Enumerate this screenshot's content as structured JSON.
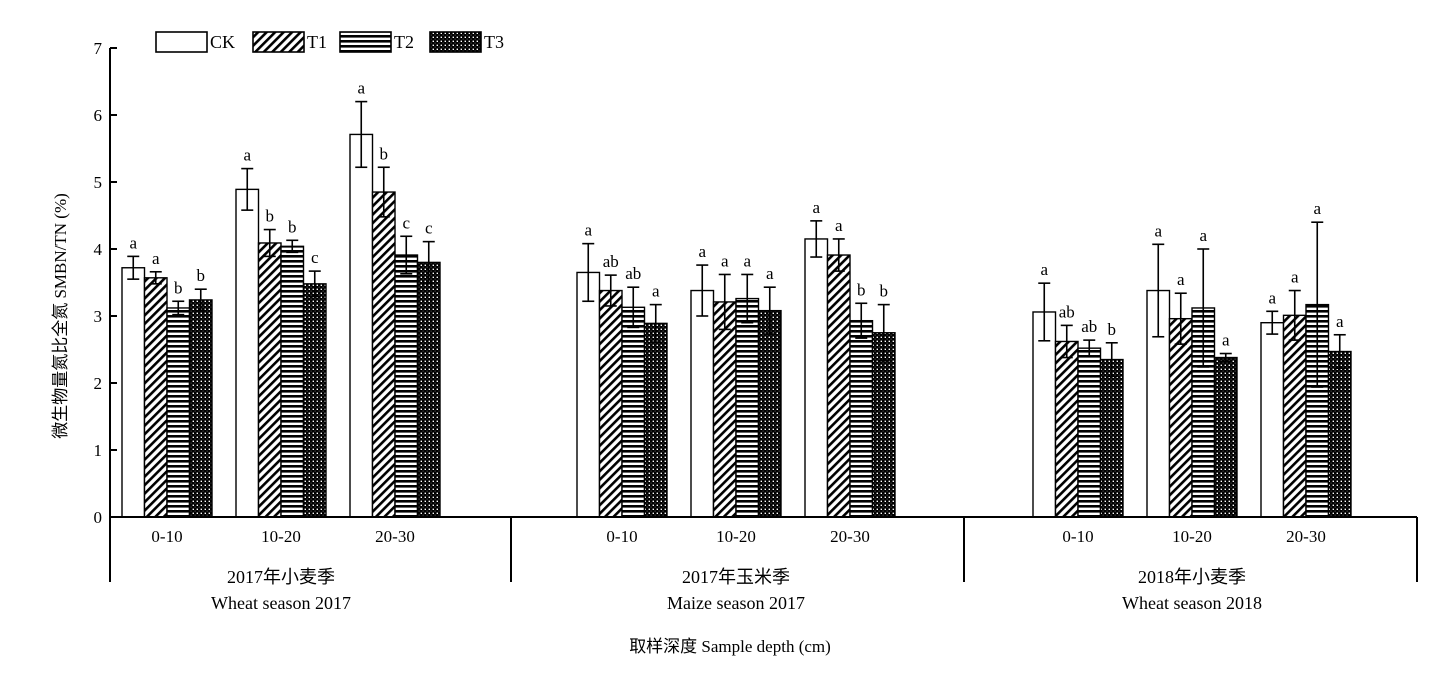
{
  "chart_data": {
    "type": "bar",
    "ylabel": "微生物量氮比全氮 SMBN/TN (%)",
    "xlabel": "取样深度 Sample depth (cm)",
    "ylim": [
      0,
      7
    ],
    "yticks": [
      0,
      1,
      2,
      3,
      4,
      5,
      6,
      7
    ],
    "legend": {
      "position": "top-left",
      "entries": [
        "CK",
        "T1",
        "T2",
        "T3"
      ]
    },
    "series_patterns": {
      "CK": "white",
      "T1": "diagonal-hatch",
      "T2": "horizontal-lines",
      "T3": "dotted-grid"
    },
    "groups": [
      {
        "name_cn": "2017年小麦季",
        "name_en": "Wheat season 2017",
        "depths": [
          {
            "label": "0-10",
            "values": [
              3.72,
              3.57,
              3.12,
              3.24
            ],
            "errors": [
              0.17,
              0.09,
              0.1,
              0.16
            ],
            "letters": [
              "a",
              "a",
              "b",
              "b"
            ]
          },
          {
            "label": "10-20",
            "values": [
              4.89,
              4.09,
              4.04,
              3.48
            ],
            "errors": [
              0.31,
              0.2,
              0.09,
              0.19
            ],
            "letters": [
              "a",
              "b",
              "b",
              "c"
            ]
          },
          {
            "label": "20-30",
            "values": [
              5.71,
              4.85,
              3.91,
              3.8
            ],
            "errors": [
              0.49,
              0.37,
              0.28,
              0.31
            ],
            "letters": [
              "a",
              "b",
              "c",
              "c"
            ]
          }
        ]
      },
      {
        "name_cn": "2017年玉米季",
        "name_en": "Maize season 2017",
        "depths": [
          {
            "label": "0-10",
            "values": [
              3.65,
              3.38,
              3.13,
              2.89
            ],
            "errors": [
              0.43,
              0.23,
              0.3,
              0.28
            ],
            "letters": [
              "a",
              "ab",
              "ab",
              "a"
            ]
          },
          {
            "label": "10-20",
            "values": [
              3.38,
              3.21,
              3.26,
              3.08
            ],
            "errors": [
              0.38,
              0.41,
              0.36,
              0.35
            ],
            "letters": [
              "a",
              "a",
              "a",
              "a"
            ]
          },
          {
            "label": "20-30",
            "values": [
              4.15,
              3.91,
              2.93,
              2.75
            ],
            "errors": [
              0.27,
              0.24,
              0.26,
              0.42
            ],
            "letters": [
              "a",
              "a",
              "b",
              "b"
            ]
          }
        ]
      },
      {
        "name_cn": "2018年小麦季",
        "name_en": "Wheat season 2018",
        "depths": [
          {
            "label": "0-10",
            "values": [
              3.06,
              2.62,
              2.52,
              2.35
            ],
            "errors": [
              0.43,
              0.24,
              0.12,
              0.25
            ],
            "letters": [
              "a",
              "ab",
              "ab",
              "b"
            ]
          },
          {
            "label": "10-20",
            "values": [
              3.38,
              2.96,
              3.12,
              2.38
            ],
            "errors": [
              0.69,
              0.38,
              0.88,
              0.06
            ],
            "letters": [
              "a",
              "a",
              "a",
              "a"
            ]
          },
          {
            "label": "20-30",
            "values": [
              2.9,
              3.01,
              3.17,
              2.47
            ],
            "errors": [
              0.17,
              0.37,
              1.23,
              0.25
            ],
            "letters": [
              "a",
              "a",
              "a",
              "a"
            ]
          }
        ]
      }
    ]
  }
}
